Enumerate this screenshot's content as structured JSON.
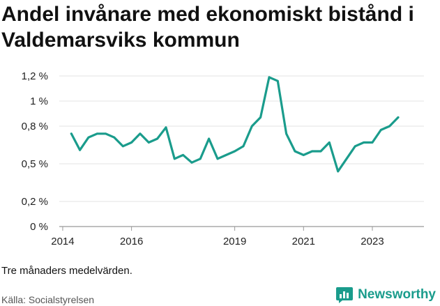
{
  "title": "Andel invånare med ekonomiskt bistånd i Valdemarsviks kommun",
  "note": "Tre månaders medelvärden.",
  "source": "Källa: Socialstyrelsen",
  "brand": {
    "name": "Newsworthy",
    "icon": "newsworthy-logo-icon",
    "color": "#1a9c8c"
  },
  "chart_data": {
    "type": "line",
    "title": "Andel invånare med ekonomiskt bistånd i Valdemarsviks kommun",
    "xlabel": "",
    "ylabel": "",
    "x_ticks": [
      "2014",
      "2016",
      "2019",
      "2021",
      "2023"
    ],
    "y_ticks": [
      "0 %",
      "0,2 %",
      "0,5 %",
      "0,8 %",
      "1 %",
      "1,2 %"
    ],
    "ylim": [
      0,
      1.25
    ],
    "grid": true,
    "series": [
      {
        "color": "#1a9c8c",
        "points": [
          {
            "x": "2014-04",
            "y": 0.74
          },
          {
            "x": "2014-07",
            "y": 0.61
          },
          {
            "x": "2014-10",
            "y": 0.71
          },
          {
            "x": "2015-01",
            "y": 0.74
          },
          {
            "x": "2015-04",
            "y": 0.74
          },
          {
            "x": "2015-07",
            "y": 0.71
          },
          {
            "x": "2015-10",
            "y": 0.64
          },
          {
            "x": "2016-01",
            "y": 0.67
          },
          {
            "x": "2016-04",
            "y": 0.74
          },
          {
            "x": "2016-07",
            "y": 0.67
          },
          {
            "x": "2016-10",
            "y": 0.7
          },
          {
            "x": "2017-01",
            "y": 0.79
          },
          {
            "x": "2017-04",
            "y": 0.54
          },
          {
            "x": "2017-07",
            "y": 0.57
          },
          {
            "x": "2017-10",
            "y": 0.51
          },
          {
            "x": "2018-01",
            "y": 0.54
          },
          {
            "x": "2018-04",
            "y": 0.7
          },
          {
            "x": "2018-07",
            "y": 0.54
          },
          {
            "x": "2018-10",
            "y": 0.57
          },
          {
            "x": "2019-01",
            "y": 0.6
          },
          {
            "x": "2019-04",
            "y": 0.64
          },
          {
            "x": "2019-07",
            "y": 0.8
          },
          {
            "x": "2019-10",
            "y": 0.87
          },
          {
            "x": "2020-01",
            "y": 1.19
          },
          {
            "x": "2020-04",
            "y": 1.16
          },
          {
            "x": "2020-07",
            "y": 0.74
          },
          {
            "x": "2020-10",
            "y": 0.6
          },
          {
            "x": "2021-01",
            "y": 0.57
          },
          {
            "x": "2021-04",
            "y": 0.6
          },
          {
            "x": "2021-07",
            "y": 0.6
          },
          {
            "x": "2021-10",
            "y": 0.67
          },
          {
            "x": "2022-01",
            "y": 0.44
          },
          {
            "x": "2022-04",
            "y": 0.54
          },
          {
            "x": "2022-07",
            "y": 0.64
          },
          {
            "x": "2022-10",
            "y": 0.67
          },
          {
            "x": "2023-01",
            "y": 0.67
          },
          {
            "x": "2023-04",
            "y": 0.77
          },
          {
            "x": "2023-07",
            "y": 0.8
          },
          {
            "x": "2023-10",
            "y": 0.87
          }
        ]
      }
    ]
  }
}
